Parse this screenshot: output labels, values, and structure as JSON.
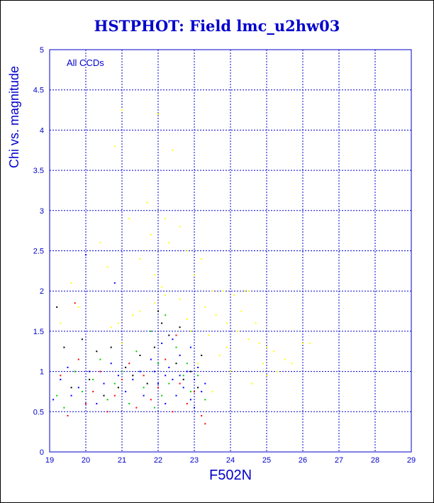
{
  "chart_data": {
    "type": "scatter",
    "title": "HSTPHOT: Field lmc_u2hw03",
    "xlabel": "F502N",
    "ylabel": "Chi vs. magnitude",
    "annotation": "All CCDs",
    "xlim": [
      19,
      29
    ],
    "ylim": [
      0,
      5
    ],
    "xticks": [
      19,
      20,
      21,
      22,
      23,
      24,
      25,
      26,
      27,
      28,
      29
    ],
    "yticks": [
      0,
      0.5,
      1,
      1.5,
      2,
      2.5,
      3,
      3.5,
      4,
      4.5,
      5
    ],
    "ytick_labels": [
      "0",
      "0.5",
      "1",
      "1.5",
      "2",
      "2.5",
      "3",
      "3.5",
      "4",
      "4.5",
      "5"
    ],
    "grid": true,
    "colors": {
      "axes": "#0000cc",
      "grid": "#0000cc",
      "title": "#0000cc"
    },
    "series": [
      {
        "color": "#ffff00",
        "points": [
          [
            20.4,
            2.6
          ],
          [
            20.6,
            2.3
          ],
          [
            20.8,
            3.8
          ],
          [
            21.0,
            4.25
          ],
          [
            21.2,
            2.9
          ],
          [
            21.5,
            2.4
          ],
          [
            21.7,
            3.1
          ],
          [
            21.8,
            2.7
          ],
          [
            21.9,
            2.2
          ],
          [
            22.0,
            4.2
          ],
          [
            22.1,
            2.05
          ],
          [
            22.2,
            2.9
          ],
          [
            22.4,
            3.75
          ],
          [
            22.3,
            2.6
          ],
          [
            22.6,
            2.8
          ],
          [
            22.8,
            2.5
          ],
          [
            23.0,
            2.2
          ],
          [
            23.2,
            2.4
          ],
          [
            23.5,
            2.0
          ],
          [
            23.8,
            2.0
          ],
          [
            24.1,
            1.95
          ],
          [
            24.4,
            2.0
          ],
          [
            24.5,
            2.0
          ],
          [
            23.3,
            1.8
          ],
          [
            23.6,
            1.7
          ],
          [
            23.9,
            1.6
          ],
          [
            24.2,
            1.5
          ],
          [
            24.5,
            1.4
          ],
          [
            24.8,
            1.35
          ],
          [
            25.0,
            1.3
          ],
          [
            25.2,
            1.25
          ],
          [
            25.5,
            1.15
          ],
          [
            25.7,
            1.1
          ],
          [
            26.0,
            1.35
          ],
          [
            26.2,
            1.35
          ],
          [
            25.3,
            1.0
          ],
          [
            25.0,
            0.95
          ],
          [
            24.7,
            1.6
          ],
          [
            24.3,
            1.75
          ],
          [
            23.9,
            1.3
          ],
          [
            23.4,
            1.45
          ],
          [
            23.7,
            1.2
          ],
          [
            24.0,
            1.0
          ],
          [
            24.6,
            0.85
          ],
          [
            23.5,
            0.75
          ],
          [
            22.8,
            1.65
          ],
          [
            22.6,
            1.9
          ],
          [
            22.2,
            1.95
          ],
          [
            21.9,
            1.85
          ],
          [
            21.5,
            1.75
          ],
          [
            21.3,
            1.7
          ],
          [
            20.9,
            1.6
          ],
          [
            20.7,
            1.55
          ],
          [
            19.8,
            1.8
          ],
          [
            19.6,
            2.1
          ],
          [
            19.3,
            1.6
          ],
          [
            21.0,
            1.35
          ],
          [
            22.9,
            1.5
          ],
          [
            23.1,
            1.1
          ],
          [
            24.9,
            1.1
          ]
        ]
      },
      {
        "color": "#0000ff",
        "points": [
          [
            19.1,
            0.65
          ],
          [
            19.3,
            0.9
          ],
          [
            19.5,
            1.05
          ],
          [
            19.6,
            0.7
          ],
          [
            19.8,
            0.8
          ],
          [
            20.0,
            2.45
          ],
          [
            20.1,
            1.0
          ],
          [
            20.3,
            0.6
          ],
          [
            20.5,
            0.85
          ],
          [
            20.7,
            1.1
          ],
          [
            20.9,
            0.95
          ],
          [
            21.1,
            0.75
          ],
          [
            21.3,
            0.9
          ],
          [
            21.5,
            1.0
          ],
          [
            21.6,
            0.7
          ],
          [
            21.8,
            1.15
          ],
          [
            22.0,
            0.85
          ],
          [
            22.1,
            1.35
          ],
          [
            22.2,
            0.6
          ],
          [
            22.3,
            1.05
          ],
          [
            22.4,
            0.9
          ],
          [
            22.5,
            0.7
          ],
          [
            22.6,
            1.2
          ],
          [
            22.7,
            0.8
          ],
          [
            22.8,
            1.0
          ],
          [
            22.9,
            0.65
          ],
          [
            23.0,
            0.9
          ],
          [
            23.1,
            1.05
          ],
          [
            23.2,
            0.75
          ],
          [
            23.3,
            0.85
          ],
          [
            22.2,
            0.95
          ],
          [
            22.4,
            1.4
          ],
          [
            22.9,
            1.3
          ],
          [
            21.9,
            1.0
          ],
          [
            23.0,
            0.55
          ],
          [
            22.6,
            0.95
          ],
          [
            20.8,
            2.1
          ]
        ]
      },
      {
        "color": "#00cc00",
        "points": [
          [
            19.2,
            0.7
          ],
          [
            19.4,
            0.55
          ],
          [
            19.7,
            1.0
          ],
          [
            19.9,
            0.75
          ],
          [
            20.2,
            0.9
          ],
          [
            20.4,
            1.15
          ],
          [
            20.6,
            0.65
          ],
          [
            20.8,
            0.85
          ],
          [
            21.0,
            1.0
          ],
          [
            21.2,
            0.6
          ],
          [
            21.4,
            1.25
          ],
          [
            21.6,
            0.8
          ],
          [
            21.8,
            1.5
          ],
          [
            22.0,
            1.1
          ],
          [
            22.1,
            0.7
          ],
          [
            22.3,
            0.85
          ],
          [
            22.5,
            1.3
          ],
          [
            22.7,
            0.95
          ],
          [
            22.9,
            0.75
          ],
          [
            23.1,
            0.95
          ],
          [
            23.3,
            0.65
          ],
          [
            22.2,
            1.7
          ],
          [
            21.9,
            0.55
          ],
          [
            22.8,
            1.1
          ]
        ]
      },
      {
        "color": "#ff0000",
        "points": [
          [
            19.3,
            0.95
          ],
          [
            19.5,
            0.45
          ],
          [
            19.8,
            1.15
          ],
          [
            20.0,
            0.6
          ],
          [
            20.2,
            0.75
          ],
          [
            20.4,
            1.0
          ],
          [
            20.6,
            0.5
          ],
          [
            20.8,
            0.7
          ],
          [
            21.0,
            0.9
          ],
          [
            21.2,
            1.1
          ],
          [
            21.4,
            0.55
          ],
          [
            21.6,
            0.95
          ],
          [
            21.8,
            0.65
          ],
          [
            22.0,
            0.8
          ],
          [
            22.2,
            1.15
          ],
          [
            22.4,
            0.5
          ],
          [
            22.6,
            0.85
          ],
          [
            22.8,
            0.6
          ],
          [
            23.0,
            0.75
          ],
          [
            23.2,
            0.45
          ],
          [
            23.3,
            0.35
          ],
          [
            22.5,
            1.45
          ],
          [
            19.7,
            1.85
          ]
        ]
      },
      {
        "color": "#000000",
        "points": [
          [
            19.2,
            1.8
          ],
          [
            19.4,
            1.3
          ],
          [
            19.6,
            0.8
          ],
          [
            19.9,
            1.4
          ],
          [
            20.1,
            0.9
          ],
          [
            20.3,
            1.25
          ],
          [
            20.5,
            0.7
          ],
          [
            20.7,
            1.3
          ],
          [
            20.9,
            0.8
          ],
          [
            21.1,
            1.05
          ],
          [
            21.3,
            0.95
          ],
          [
            21.5,
            1.2
          ],
          [
            21.7,
            0.85
          ],
          [
            21.9,
            1.3
          ],
          [
            22.1,
            1.6
          ],
          [
            22.3,
            1.45
          ],
          [
            22.5,
            1.1
          ],
          [
            22.7,
            0.9
          ],
          [
            22.9,
            1.0
          ],
          [
            23.1,
            0.8
          ],
          [
            23.2,
            1.2
          ],
          [
            22.6,
            1.55
          ],
          [
            22.0,
            1.75
          ]
        ]
      }
    ]
  }
}
